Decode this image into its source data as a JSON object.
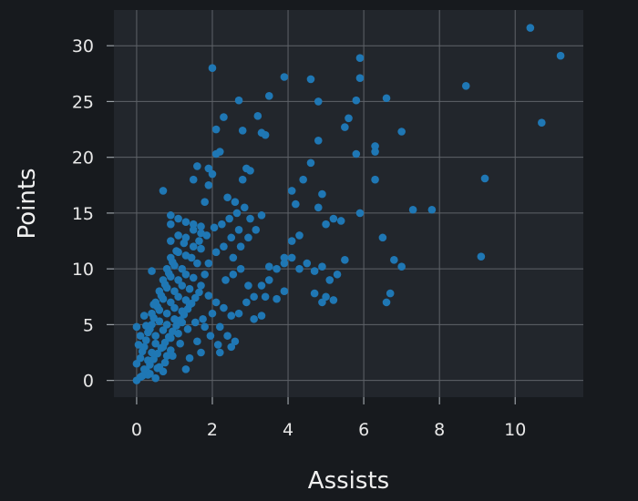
{
  "chart_data": {
    "type": "scatter",
    "xlabel": "Assists",
    "ylabel": "Points",
    "xlim": [
      -0.6,
      11.8
    ],
    "ylim": [
      -1.5,
      33.2
    ],
    "xticks": [
      0,
      2,
      4,
      6,
      8,
      10
    ],
    "yticks": [
      0,
      5,
      10,
      15,
      20,
      25,
      30
    ],
    "grid": true,
    "point_color": "#1f77b4",
    "background": "#171a1e",
    "plot_background": "#22262c",
    "grid_color": "#5f6369",
    "text_color": "#e8e8e8",
    "series": [
      {
        "values": [
          [
            0.0,
            0.0
          ],
          [
            0.1,
            0.3
          ],
          [
            0.3,
            0.5
          ],
          [
            0.5,
            0.2
          ],
          [
            0.7,
            0.8
          ],
          [
            0.2,
            1.0
          ],
          [
            0.0,
            1.5
          ],
          [
            0.1,
            2.0
          ],
          [
            0.3,
            1.8
          ],
          [
            0.4,
            2.5
          ],
          [
            0.6,
            1.2
          ],
          [
            0.8,
            2.2
          ],
          [
            0.2,
            3.0
          ],
          [
            0.5,
            3.3
          ],
          [
            0.7,
            3.0
          ],
          [
            0.9,
            2.7
          ],
          [
            0.1,
            4.0
          ],
          [
            0.3,
            4.3
          ],
          [
            0.5,
            4.0
          ],
          [
            0.7,
            4.5
          ],
          [
            0.9,
            3.8
          ],
          [
            1.1,
            4.2
          ],
          [
            0.0,
            4.8
          ],
          [
            0.4,
            5.0
          ],
          [
            0.6,
            5.3
          ],
          [
            0.8,
            5.0
          ],
          [
            1.0,
            5.5
          ],
          [
            1.2,
            5.2
          ],
          [
            0.2,
            5.8
          ],
          [
            0.4,
            6.0
          ],
          [
            0.6,
            6.3
          ],
          [
            0.8,
            6.0
          ],
          [
            1.0,
            6.5
          ],
          [
            1.2,
            6.2
          ],
          [
            1.4,
            6.8
          ],
          [
            0.5,
            7.0
          ],
          [
            0.7,
            7.3
          ],
          [
            0.9,
            7.0
          ],
          [
            1.1,
            7.5
          ],
          [
            1.3,
            7.2
          ],
          [
            0.6,
            8.0
          ],
          [
            0.8,
            8.3
          ],
          [
            1.0,
            8.0
          ],
          [
            1.2,
            8.5
          ],
          [
            1.4,
            8.2
          ],
          [
            0.7,
            9.0
          ],
          [
            0.9,
            9.3
          ],
          [
            1.1,
            9.0
          ],
          [
            1.3,
            9.5
          ],
          [
            1.5,
            9.2
          ],
          [
            0.4,
            9.8
          ],
          [
            0.8,
            10.0
          ],
          [
            1.0,
            10.3
          ],
          [
            1.2,
            10.0
          ],
          [
            1.6,
            10.5
          ],
          [
            0.9,
            11.0
          ],
          [
            1.1,
            11.5
          ],
          [
            1.3,
            11.2
          ],
          [
            1.5,
            12.0
          ],
          [
            1.7,
            11.8
          ],
          [
            0.9,
            12.5
          ],
          [
            1.1,
            13.0
          ],
          [
            1.3,
            12.8
          ],
          [
            1.5,
            13.5
          ],
          [
            1.7,
            13.2
          ],
          [
            0.9,
            14.0
          ],
          [
            1.1,
            14.5
          ],
          [
            1.3,
            14.2
          ],
          [
            1.5,
            14.0
          ],
          [
            1.7,
            13.8
          ],
          [
            0.9,
            14.8
          ],
          [
            0.7,
            17.0
          ],
          [
            1.5,
            18.0
          ],
          [
            1.6,
            19.2
          ],
          [
            1.8,
            16.0
          ],
          [
            1.9,
            17.5
          ],
          [
            2.0,
            18.5
          ],
          [
            1.9,
            19.0
          ],
          [
            2.1,
            20.3
          ],
          [
            2.2,
            20.5
          ],
          [
            2.1,
            22.5
          ],
          [
            2.0,
            28.0
          ],
          [
            2.3,
            23.6
          ],
          [
            2.7,
            25.1
          ],
          [
            2.8,
            22.4
          ],
          [
            2.9,
            19.0
          ],
          [
            2.4,
            16.4
          ],
          [
            2.6,
            16.0
          ],
          [
            2.8,
            18.0
          ],
          [
            3.0,
            18.8
          ],
          [
            3.2,
            23.7
          ],
          [
            3.4,
            22.0
          ],
          [
            3.3,
            22.2
          ],
          [
            3.5,
            25.5
          ],
          [
            3.3,
            14.8
          ],
          [
            3.0,
            14.5
          ],
          [
            2.7,
            13.5
          ],
          [
            2.5,
            12.8
          ],
          [
            2.3,
            12.0
          ],
          [
            2.1,
            11.5
          ],
          [
            1.9,
            10.5
          ],
          [
            1.8,
            9.5
          ],
          [
            1.7,
            8.5
          ],
          [
            1.9,
            7.6
          ],
          [
            2.1,
            7.0
          ],
          [
            2.3,
            6.5
          ],
          [
            2.5,
            5.8
          ],
          [
            2.2,
            4.8
          ],
          [
            2.4,
            4.0
          ],
          [
            2.6,
            3.5
          ],
          [
            2.5,
            3.0
          ],
          [
            2.2,
            2.5
          ],
          [
            1.7,
            2.5
          ],
          [
            1.4,
            2.0
          ],
          [
            1.3,
            1.0
          ],
          [
            1.6,
            3.5
          ],
          [
            1.8,
            4.8
          ],
          [
            2.0,
            6.0
          ],
          [
            2.7,
            6.0
          ],
          [
            2.9,
            7.0
          ],
          [
            3.1,
            7.5
          ],
          [
            3.3,
            8.5
          ],
          [
            3.5,
            9.0
          ],
          [
            3.7,
            10.0
          ],
          [
            3.9,
            10.5
          ],
          [
            4.1,
            11.0
          ],
          [
            4.3,
            10.0
          ],
          [
            4.5,
            10.5
          ],
          [
            4.7,
            9.8
          ],
          [
            4.9,
            10.2
          ],
          [
            5.1,
            9.0
          ],
          [
            5.3,
            9.5
          ],
          [
            5.0,
            7.5
          ],
          [
            5.2,
            7.2
          ],
          [
            4.9,
            7.0
          ],
          [
            4.7,
            7.8
          ],
          [
            3.9,
            8.0
          ],
          [
            3.7,
            7.3
          ],
          [
            3.4,
            7.5
          ],
          [
            3.3,
            5.8
          ],
          [
            3.1,
            5.5
          ],
          [
            3.5,
            10.2
          ],
          [
            3.9,
            11.0
          ],
          [
            4.1,
            12.5
          ],
          [
            4.3,
            13.0
          ],
          [
            4.2,
            15.8
          ],
          [
            4.1,
            17.0
          ],
          [
            4.4,
            18.0
          ],
          [
            4.6,
            19.5
          ],
          [
            4.8,
            21.5
          ],
          [
            4.8,
            25.0
          ],
          [
            4.6,
            27.0
          ],
          [
            3.9,
            27.2
          ],
          [
            5.0,
            14.0
          ],
          [
            5.2,
            14.5
          ],
          [
            5.4,
            14.3
          ],
          [
            4.9,
            16.7
          ],
          [
            4.8,
            15.5
          ],
          [
            5.5,
            10.8
          ],
          [
            5.5,
            22.7
          ],
          [
            5.6,
            23.5
          ],
          [
            5.8,
            25.1
          ],
          [
            5.9,
            27.1
          ],
          [
            5.9,
            28.9
          ],
          [
            5.8,
            20.3
          ],
          [
            6.3,
            20.5
          ],
          [
            6.3,
            21.0
          ],
          [
            6.3,
            18.0
          ],
          [
            5.9,
            15.0
          ],
          [
            6.5,
            12.8
          ],
          [
            6.7,
            7.8
          ],
          [
            6.6,
            7.0
          ],
          [
            6.8,
            10.8
          ],
          [
            7.0,
            10.2
          ],
          [
            7.0,
            22.3
          ],
          [
            6.6,
            25.3
          ],
          [
            7.3,
            15.3
          ],
          [
            7.8,
            15.3
          ],
          [
            8.7,
            26.4
          ],
          [
            9.1,
            11.1
          ],
          [
            9.2,
            18.1
          ],
          [
            10.4,
            31.6
          ],
          [
            10.7,
            23.1
          ],
          [
            11.2,
            29.1
          ],
          [
            0.25,
            0.9
          ],
          [
            0.35,
            1.4
          ],
          [
            0.45,
            1.9
          ],
          [
            0.55,
            2.4
          ],
          [
            0.65,
            2.9
          ],
          [
            0.75,
            3.4
          ],
          [
            0.85,
            3.9
          ],
          [
            0.95,
            4.4
          ],
          [
            1.05,
            4.9
          ],
          [
            1.15,
            5.4
          ],
          [
            1.25,
            5.9
          ],
          [
            1.35,
            6.4
          ],
          [
            1.45,
            6.9
          ],
          [
            1.55,
            7.4
          ],
          [
            1.65,
            7.9
          ],
          [
            0.15,
            2.6
          ],
          [
            0.25,
            3.6
          ],
          [
            0.35,
            4.6
          ],
          [
            0.45,
            5.6
          ],
          [
            0.55,
            6.6
          ],
          [
            0.65,
            7.6
          ],
          [
            0.75,
            8.6
          ],
          [
            0.85,
            9.6
          ],
          [
            0.95,
            10.6
          ],
          [
            1.05,
            11.6
          ],
          [
            1.25,
            12.3
          ],
          [
            1.45,
            11.0
          ],
          [
            1.65,
            12.5
          ],
          [
            1.85,
            13.0
          ],
          [
            2.05,
            13.7
          ],
          [
            2.25,
            14.0
          ],
          [
            2.45,
            14.5
          ],
          [
            2.65,
            15.0
          ],
          [
            2.85,
            15.5
          ],
          [
            2.55,
            11.0
          ],
          [
            2.75,
            12.0
          ],
          [
            2.95,
            12.8
          ],
          [
            3.15,
            13.5
          ],
          [
            2.35,
            9.0
          ],
          [
            2.55,
            9.5
          ],
          [
            2.75,
            10.0
          ],
          [
            2.95,
            8.5
          ],
          [
            1.95,
            4.0
          ],
          [
            2.15,
            3.2
          ],
          [
            1.75,
            5.5
          ],
          [
            1.55,
            5.2
          ],
          [
            1.35,
            4.6
          ],
          [
            1.15,
            3.3
          ],
          [
            0.95,
            2.2
          ],
          [
            0.75,
            1.6
          ],
          [
            0.55,
            1.1
          ],
          [
            0.35,
            0.6
          ],
          [
            0.15,
            0.4
          ],
          [
            0.05,
            3.2
          ],
          [
            0.25,
            4.9
          ],
          [
            0.45,
            6.8
          ]
        ]
      }
    ]
  }
}
